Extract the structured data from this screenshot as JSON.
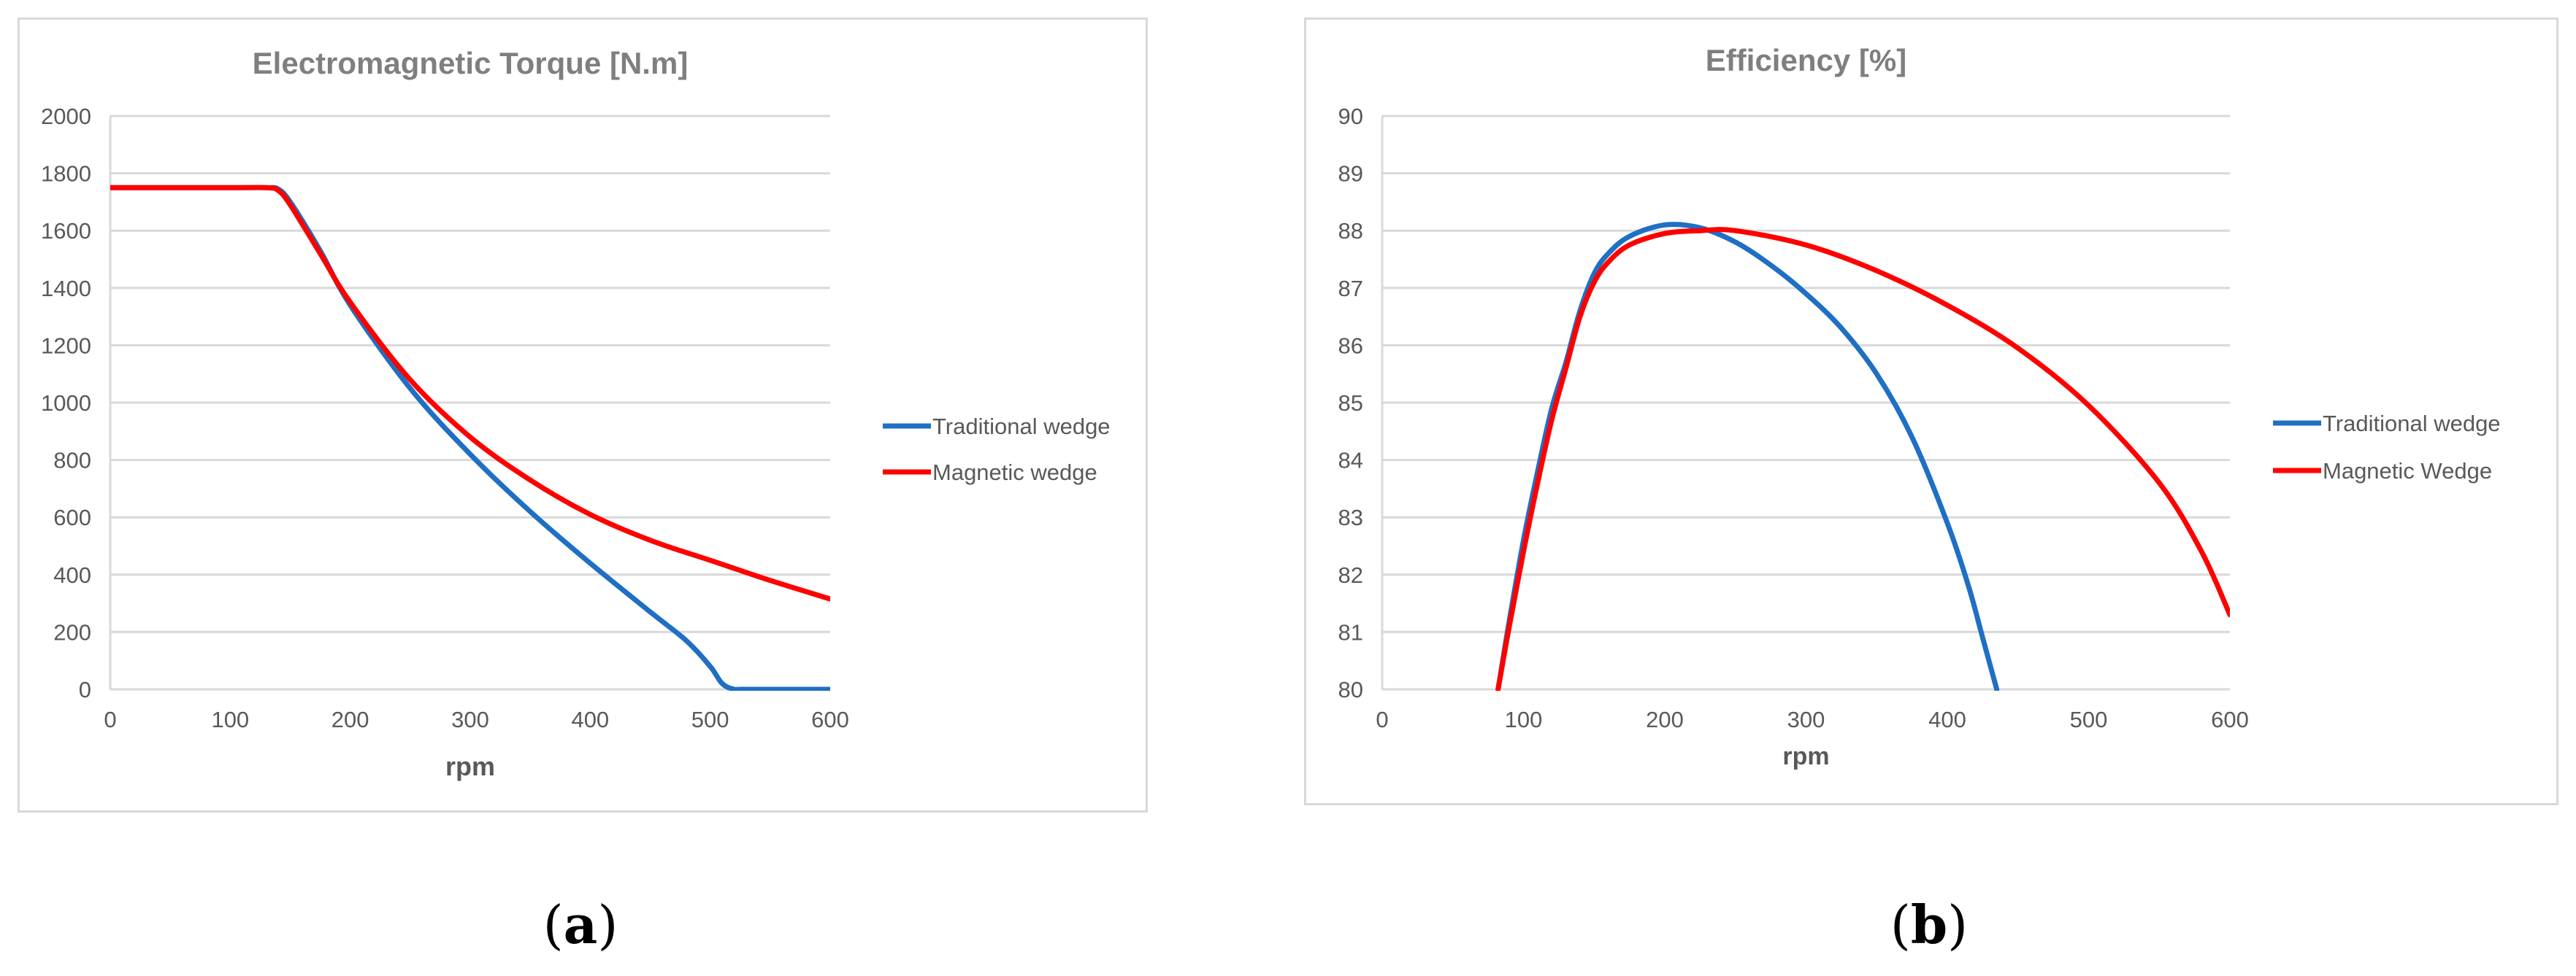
{
  "chart_data": [
    {
      "type": "line",
      "title": "Electromagnetic Torque [N.m]",
      "xlabel": "rpm",
      "ylabel": "",
      "xlim": [
        0,
        600
      ],
      "ylim": [
        0,
        2000
      ],
      "xticks": [
        0,
        100,
        200,
        300,
        400,
        500,
        600
      ],
      "yticks": [
        0,
        200,
        400,
        600,
        800,
        1000,
        1200,
        1400,
        1600,
        1800,
        2000
      ],
      "grid": true,
      "legend_position": "right",
      "series": [
        {
          "name": "Traditional wedge",
          "color": "#1f6fc4",
          "x": [
            0,
            100,
            130,
            140,
            150,
            175,
            200,
            250,
            300,
            350,
            400,
            450,
            480,
            500,
            510,
            520,
            530,
            600
          ],
          "y": [
            1750,
            1750,
            1750,
            1745,
            1700,
            1530,
            1340,
            1050,
            820,
            620,
            440,
            270,
            170,
            80,
            20,
            0,
            0,
            0
          ]
        },
        {
          "name": "Magnetic wedge",
          "color": "#ff0000",
          "x": [
            0,
            100,
            130,
            140,
            150,
            175,
            200,
            250,
            300,
            350,
            400,
            450,
            500,
            550,
            600
          ],
          "y": [
            1750,
            1750,
            1750,
            1740,
            1690,
            1520,
            1350,
            1080,
            880,
            730,
            610,
            520,
            450,
            380,
            315
          ]
        }
      ]
    },
    {
      "type": "line",
      "title": "Efficiency [%]",
      "xlabel": "rpm",
      "ylabel": "",
      "xlim": [
        0,
        600
      ],
      "ylim": [
        80,
        90
      ],
      "xticks": [
        0,
        100,
        200,
        300,
        400,
        500,
        600
      ],
      "yticks": [
        80,
        81,
        82,
        83,
        84,
        85,
        86,
        87,
        88,
        89,
        90
      ],
      "grid": true,
      "legend_position": "right",
      "series": [
        {
          "name": "Traditional wedge",
          "color": "#1f6fc4",
          "x": [
            82,
            90,
            100,
            110,
            120,
            130,
            140,
            150,
            160,
            175,
            200,
            225,
            250,
            275,
            300,
            325,
            350,
            375,
            400,
            415,
            425,
            435
          ],
          "y": [
            80,
            81.2,
            82.6,
            83.8,
            84.9,
            85.7,
            86.6,
            87.25,
            87.6,
            87.9,
            88.1,
            88.05,
            87.8,
            87.4,
            86.9,
            86.3,
            85.5,
            84.4,
            82.9,
            81.8,
            80.9,
            80
          ]
        },
        {
          "name": "Magnetic Wedge",
          "color": "#ff0000",
          "x": [
            82,
            90,
            100,
            110,
            120,
            130,
            140,
            150,
            160,
            175,
            200,
            225,
            250,
            300,
            350,
            400,
            450,
            500,
            550,
            580,
            600
          ],
          "y": [
            80,
            81.1,
            82.4,
            83.6,
            84.7,
            85.6,
            86.5,
            87.1,
            87.45,
            87.75,
            87.95,
            88.0,
            88.0,
            87.75,
            87.3,
            86.7,
            85.95,
            84.95,
            83.6,
            82.4,
            81.3
          ]
        }
      ]
    }
  ],
  "captions": [
    {
      "open": "(",
      "letter": "a",
      "close": ")"
    },
    {
      "open": "(",
      "letter": "b",
      "close": ")"
    }
  ]
}
